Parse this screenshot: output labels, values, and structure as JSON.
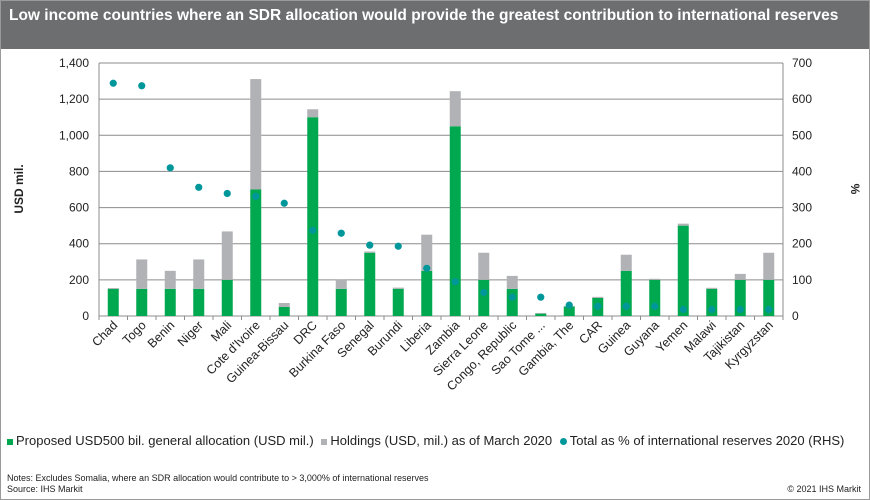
{
  "title": "Low income countries where an SDR allocation would  provide the greatest contribution to international reserves",
  "chart_data": {
    "type": "bar",
    "stacked": true,
    "title": "Low income countries where an SDR allocation would  provide the greatest contribution to international reserves",
    "ylabel": "USD mil.",
    "y2label": "%",
    "ylim": [
      0,
      1400
    ],
    "y2lim": [
      0,
      700
    ],
    "yticks": [
      "0",
      "200",
      "400",
      "600",
      "800",
      "1,000",
      "1,200",
      "1,400"
    ],
    "y2ticks": [
      "0",
      "100",
      "200",
      "300",
      "400",
      "500",
      "600",
      "700"
    ],
    "grid": true,
    "legend_placement": "bottom",
    "categories": [
      "Chad",
      "Togo",
      "Benin",
      "Niger",
      "Mali",
      "Cote d'Ivoire",
      "Guinea-Bissau",
      "DRC",
      "Burkina Faso",
      "Senegal",
      "Burundi",
      "Liberia",
      "Zambia",
      "Sierra Leone",
      "Congo, Republic",
      "Sao Tome ...",
      "Gambia, The",
      "CAR",
      "Guinea",
      "Guyana",
      "Yemen",
      "Malawi",
      "Tajikistan",
      "Kyrgyzstan"
    ],
    "series": [
      {
        "name": "Proposed USD500 bil. general allocation (USD mil.)",
        "type": "bar",
        "axis": "left",
        "color": "#00a84f",
        "values": [
          150,
          150,
          150,
          150,
          200,
          700,
          50,
          1100,
          150,
          350,
          150,
          250,
          1050,
          200,
          150,
          13,
          52,
          100,
          250,
          200,
          500,
          150,
          200,
          200
        ]
      },
      {
        "name": "Holdings (USD, mil.) as of March 2020",
        "type": "bar",
        "axis": "left",
        "color": "#b1b2b5",
        "values": [
          5,
          163,
          100,
          163,
          268,
          611,
          22,
          44,
          50,
          7,
          7,
          200,
          194,
          150,
          72,
          4,
          4,
          6,
          89,
          6,
          11,
          6,
          33,
          150
        ]
      },
      {
        "name": "Total as % of international reserves 2020 (RHS)",
        "type": "scatter",
        "axis": "right",
        "color": "#00979b",
        "values": [
          644,
          637,
          410,
          356,
          339,
          331,
          312,
          237,
          229,
          196,
          193,
          132,
          95,
          65,
          52,
          52,
          30,
          27,
          27,
          27,
          18,
          18,
          18,
          18
        ]
      }
    ]
  },
  "notes": "Notes: Excludes Somalia, where an SDR allocation would contribute to > 3,000% of international reserves",
  "source": "Source: IHS Markit",
  "copyright": "© 2021  IHS Markit"
}
